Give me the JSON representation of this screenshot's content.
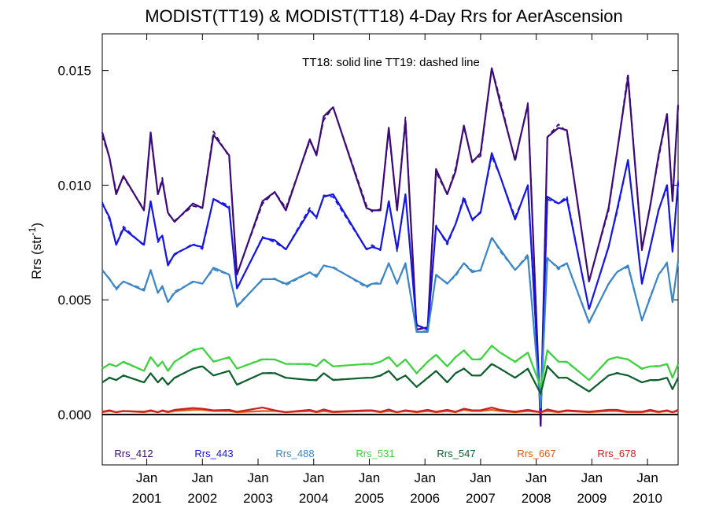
{
  "chart_data": {
    "type": "line",
    "title": "MODIST(TT19) & MODIST(TT18) 4-Day Rrs for AerAscension",
    "ylabel": "Rrs (str",
    "ylabel_sup": "-1",
    "ylabel_close": ")",
    "annotation": "TT18: solid line   TT19: dashed line",
    "ylim": [
      -0.0022,
      0.0166
    ],
    "xlim": [
      2000.2,
      2010.55
    ],
    "y_ticks": [
      {
        "value": 0.0,
        "label": "0.000"
      },
      {
        "value": 0.005,
        "label": "0.005"
      },
      {
        "value": 0.01,
        "label": "0.010"
      },
      {
        "value": 0.015,
        "label": "0.015"
      }
    ],
    "x_ticks": [
      {
        "value": 2001.0,
        "month": "Jan",
        "year": "2001"
      },
      {
        "value": 2002.0,
        "month": "Jan",
        "year": "2002"
      },
      {
        "value": 2003.0,
        "month": "Jan",
        "year": "2003"
      },
      {
        "value": 2004.0,
        "month": "Jan",
        "year": "2004"
      },
      {
        "value": 2005.0,
        "month": "Jan",
        "year": "2005"
      },
      {
        "value": 2006.0,
        "month": "Jan",
        "year": "2006"
      },
      {
        "value": 2007.0,
        "month": "Jan",
        "year": "2007"
      },
      {
        "value": 2008.0,
        "month": "Jan",
        "year": "2008"
      },
      {
        "value": 2009.0,
        "month": "Jan",
        "year": "2009"
      },
      {
        "value": 2010.0,
        "month": "Jan",
        "year": "2010"
      }
    ],
    "x": [
      2000.2,
      2000.33,
      2000.45,
      2000.58,
      2000.95,
      2001.07,
      2001.2,
      2001.28,
      2001.38,
      2001.5,
      2001.83,
      2002.0,
      2002.2,
      2002.48,
      2002.62,
      2003.08,
      2003.3,
      2003.5,
      2003.93,
      2004.05,
      2004.18,
      2004.35,
      2004.95,
      2005.05,
      2005.2,
      2005.35,
      2005.5,
      2005.65,
      2005.85,
      2006.05,
      2006.2,
      2006.4,
      2006.55,
      2006.7,
      2006.85,
      2007.0,
      2007.2,
      2007.35,
      2007.62,
      2007.85,
      2008.08,
      2008.2,
      2008.4,
      2008.55,
      2008.95,
      2009.3,
      2009.45,
      2009.65,
      2009.9,
      2010.05,
      2010.2,
      2010.35,
      2010.45,
      2010.55
    ],
    "series": [
      {
        "name": "Rrs_412",
        "color": "#3d0a7a",
        "values": [
          0.0123,
          0.0112,
          0.0096,
          0.0104,
          0.0089,
          0.0123,
          0.0096,
          0.0102,
          0.0088,
          0.0084,
          0.0092,
          0.009,
          0.0122,
          0.0113,
          0.0061,
          0.0093,
          0.0097,
          0.0089,
          0.012,
          0.0113,
          0.013,
          0.0134,
          0.009,
          0.0089,
          0.0089,
          0.0125,
          0.0089,
          0.0128,
          0.0037,
          0.0038,
          0.0107,
          0.0096,
          0.0106,
          0.0126,
          0.011,
          0.0114,
          0.0151,
          0.0136,
          0.0111,
          0.0135,
          -0.0005,
          0.0121,
          0.0125,
          0.0124,
          0.0058,
          0.009,
          0.0114,
          0.0147,
          0.0072,
          0.0091,
          0.0113,
          0.0131,
          0.0093,
          0.0135
        ]
      },
      {
        "name": "Rrs_443",
        "color": "#1515e6",
        "values": [
          0.0092,
          0.0086,
          0.0074,
          0.0081,
          0.0074,
          0.0093,
          0.0076,
          0.0078,
          0.0065,
          0.007,
          0.0074,
          0.0073,
          0.0094,
          0.009,
          0.0055,
          0.0077,
          0.0076,
          0.0072,
          0.0089,
          0.0086,
          0.0095,
          0.0096,
          0.0072,
          0.0073,
          0.0072,
          0.0093,
          0.0072,
          0.0096,
          0.0039,
          0.0037,
          0.0082,
          0.0075,
          0.0083,
          0.0094,
          0.0085,
          0.0088,
          0.0114,
          0.0104,
          0.0085,
          0.01,
          0.0001,
          0.0095,
          0.0092,
          0.0094,
          0.0046,
          0.0073,
          0.0089,
          0.0111,
          0.0057,
          0.0073,
          0.0089,
          0.01,
          0.0071,
          0.0101
        ]
      },
      {
        "name": "Rrs_488",
        "color": "#3a86c8",
        "values": [
          0.0063,
          0.0059,
          0.0055,
          0.0058,
          0.0054,
          0.0063,
          0.0053,
          0.0056,
          0.0049,
          0.0053,
          0.0058,
          0.0057,
          0.0064,
          0.0061,
          0.0047,
          0.0059,
          0.0059,
          0.0057,
          0.0062,
          0.006,
          0.0065,
          0.0064,
          0.0056,
          0.0057,
          0.0057,
          0.0066,
          0.0057,
          0.0066,
          0.0036,
          0.0036,
          0.0061,
          0.0057,
          0.0061,
          0.0066,
          0.0062,
          0.0063,
          0.0077,
          0.0072,
          0.0063,
          0.0069,
          0.0003,
          0.0068,
          0.0064,
          0.0066,
          0.004,
          0.0057,
          0.0062,
          0.0065,
          0.0041,
          0.0051,
          0.0061,
          0.0066,
          0.0049,
          0.0067
        ]
      },
      {
        "name": "Rrs_531",
        "color": "#3cd23c",
        "values": [
          0.002,
          0.0022,
          0.0021,
          0.0023,
          0.0019,
          0.0025,
          0.0021,
          0.0023,
          0.0019,
          0.0023,
          0.0028,
          0.0029,
          0.0023,
          0.0025,
          0.002,
          0.0024,
          0.0024,
          0.0022,
          0.0022,
          0.0021,
          0.0024,
          0.0021,
          0.0022,
          0.0022,
          0.0023,
          0.0025,
          0.0021,
          0.0024,
          0.0018,
          0.0023,
          0.0026,
          0.0021,
          0.0025,
          0.0028,
          0.0024,
          0.0024,
          0.003,
          0.0027,
          0.0023,
          0.0027,
          0.0012,
          0.0028,
          0.0023,
          0.0023,
          0.0015,
          0.0024,
          0.0025,
          0.0024,
          0.002,
          0.0021,
          0.0021,
          0.0022,
          0.0016,
          0.0022
        ]
      },
      {
        "name": "Rrs_547",
        "color": "#0e5f2e",
        "values": [
          0.0014,
          0.0016,
          0.0015,
          0.0017,
          0.0014,
          0.0018,
          0.0014,
          0.0016,
          0.0013,
          0.0016,
          0.002,
          0.0021,
          0.0017,
          0.0019,
          0.0013,
          0.0018,
          0.0018,
          0.0016,
          0.0015,
          0.0015,
          0.0018,
          0.0015,
          0.0016,
          0.0016,
          0.0017,
          0.0019,
          0.0015,
          0.0017,
          0.0012,
          0.0016,
          0.0019,
          0.0014,
          0.0018,
          0.002,
          0.0017,
          0.0017,
          0.0022,
          0.002,
          0.0016,
          0.002,
          0.0009,
          0.0021,
          0.0016,
          0.0016,
          0.001,
          0.0017,
          0.0018,
          0.0017,
          0.0014,
          0.0015,
          0.0015,
          0.0016,
          0.0011,
          0.0016
        ]
      },
      {
        "name": "Rrs_667",
        "color": "#e05a14",
        "values": [
          0.0001,
          0.00015,
          0.0001,
          0.00015,
          0.0001,
          0.00015,
          0.0001,
          0.00015,
          0.0001,
          0.00015,
          0.0002,
          0.0002,
          0.00015,
          0.00015,
          0.0001,
          0.00015,
          0.00015,
          0.0001,
          0.00015,
          0.0001,
          0.00015,
          0.0001,
          0.00015,
          0.00015,
          0.0001,
          0.00015,
          0.0001,
          0.00015,
          0.0001,
          0.00015,
          0.0001,
          0.00015,
          0.0001,
          0.0002,
          0.00015,
          0.00015,
          0.0002,
          0.00015,
          0.0001,
          0.00015,
          0.0001,
          0.00015,
          0.0001,
          0.00015,
          0.0001,
          0.00015,
          0.00015,
          0.0001,
          0.0001,
          0.00015,
          0.0001,
          0.00015,
          0.0001,
          0.00015
        ]
      },
      {
        "name": "Rrs_678",
        "color": "#cc2020",
        "values": [
          0.00012,
          0.00018,
          0.0001,
          0.00015,
          0.00012,
          0.00018,
          0.0001,
          0.00018,
          0.00012,
          0.0002,
          0.00028,
          0.00025,
          0.00018,
          0.0002,
          0.00012,
          0.0003,
          0.00018,
          0.0001,
          0.0002,
          0.00012,
          0.00022,
          0.00012,
          0.00018,
          0.00018,
          0.00012,
          0.00022,
          0.0001,
          0.00018,
          0.00012,
          0.0002,
          0.00012,
          0.0002,
          0.00012,
          0.00025,
          0.00018,
          0.00018,
          0.0003,
          0.0002,
          0.00012,
          0.0002,
          0.0001,
          0.00022,
          0.00012,
          0.00018,
          0.00012,
          0.0002,
          0.0002,
          0.00012,
          0.00012,
          0.0002,
          0.00012,
          0.00018,
          0.0001,
          0.0002
        ]
      }
    ]
  }
}
